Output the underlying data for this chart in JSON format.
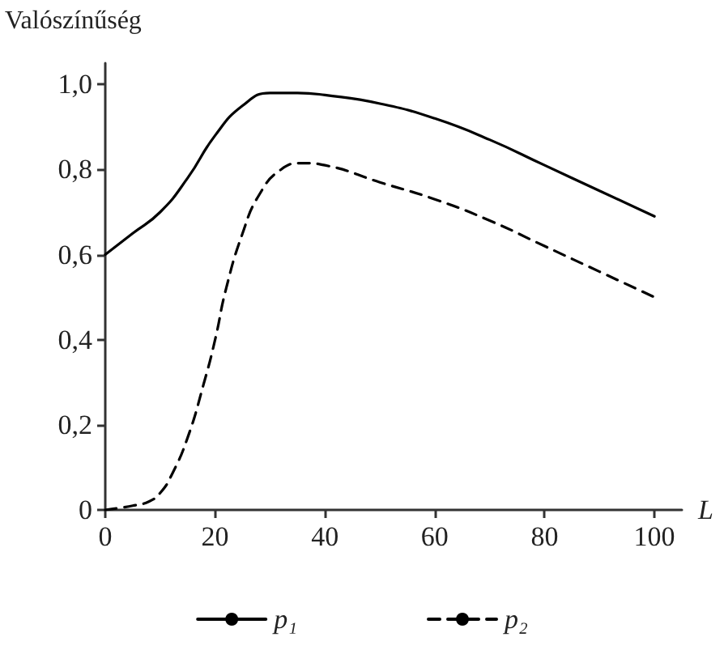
{
  "chart_data": {
    "type": "line",
    "ylabel": "Valószínűség",
    "xlabel": "L",
    "xlim": [
      0,
      105
    ],
    "ylim": [
      0,
      1.05
    ],
    "xticks": [
      0,
      20,
      40,
      60,
      80,
      100
    ],
    "yticks": [
      0,
      {
        "value": 0.2,
        "label": "0,2"
      },
      {
        "value": 0.4,
        "label": "0,4"
      },
      {
        "value": 0.6,
        "label": "0,6"
      },
      {
        "value": 0.8,
        "label": "0,8"
      },
      {
        "value": 1.0,
        "label": "1,0"
      }
    ],
    "grid": false,
    "legend": "bottom",
    "marker": "none",
    "series": [
      {
        "name": "p₁",
        "color": "#000000",
        "line_style": "solid",
        "x": [
          0,
          5,
          10,
          15,
          20,
          25,
          30,
          35,
          40,
          50,
          60,
          70,
          80,
          90,
          100
        ],
        "values": [
          0.6,
          0.65,
          0.7,
          0.78,
          0.88,
          0.95,
          0.98,
          0.98,
          0.975,
          0.955,
          0.92,
          0.87,
          0.81,
          0.75,
          0.69
        ]
      },
      {
        "name": "p₂",
        "color": "#000000",
        "line_style": "dashed",
        "x": [
          0,
          5,
          8,
          10,
          12,
          15,
          18,
          20,
          22,
          25,
          28,
          32,
          36,
          40,
          50,
          60,
          70,
          80,
          90,
          100
        ],
        "values": [
          0,
          0.01,
          0.02,
          0.04,
          0.08,
          0.17,
          0.3,
          0.4,
          0.52,
          0.65,
          0.74,
          0.8,
          0.815,
          0.81,
          0.77,
          0.73,
          0.68,
          0.62,
          0.56,
          0.5
        ]
      }
    ]
  }
}
